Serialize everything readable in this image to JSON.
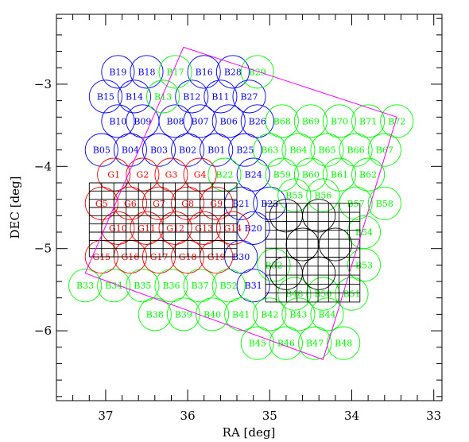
{
  "chart_data": {
    "type": "scatter",
    "xlabel": "RA [deg]",
    "ylabel": "DEC [deg]",
    "xlim": [
      37.6,
      32.9
    ],
    "ylim": [
      -6.85,
      -2.15
    ],
    "x_ticks": [
      "37",
      "36",
      "35",
      "34",
      "33"
    ],
    "x_tick_values": [
      37,
      36,
      35,
      34,
      33
    ],
    "y_ticks": [
      "−3",
      "−4",
      "−5",
      "−6"
    ],
    "y_tick_values": [
      -3,
      -4,
      -5,
      -6
    ],
    "x_minor_step": 0.2,
    "y_minor_step": 0.2,
    "grid": false,
    "field_radius_deg": 0.2,
    "colors": {
      "blue": "#0000ff",
      "green": "#00ff00",
      "red": "#ff0000",
      "magenta": "#ff00ff",
      "black": "#000000"
    },
    "series": [
      {
        "color": "blue",
        "points": [
          {
            "label": "B19",
            "ra": 36.85,
            "dec": -2.85
          },
          {
            "label": "B18",
            "ra": 36.5,
            "dec": -2.85
          },
          {
            "label": "B16",
            "ra": 35.8,
            "dec": -2.85
          },
          {
            "label": "B28",
            "ra": 35.45,
            "dec": -2.85
          },
          {
            "label": "B15",
            "ra": 37.0,
            "dec": -3.15
          },
          {
            "label": "B14",
            "ra": 36.65,
            "dec": -3.15
          },
          {
            "label": "B12",
            "ra": 35.95,
            "dec": -3.15
          },
          {
            "label": "B11",
            "ra": 35.6,
            "dec": -3.15
          },
          {
            "label": "B27",
            "ra": 35.25,
            "dec": -3.15
          },
          {
            "label": "B10",
            "ra": 36.85,
            "dec": -3.45
          },
          {
            "label": "B09",
            "ra": 36.55,
            "dec": -3.45
          },
          {
            "label": "B08",
            "ra": 36.15,
            "dec": -3.45
          },
          {
            "label": "B07",
            "ra": 35.85,
            "dec": -3.45
          },
          {
            "label": "B06",
            "ra": 35.5,
            "dec": -3.45
          },
          {
            "label": "B26",
            "ra": 35.15,
            "dec": -3.45
          },
          {
            "label": "B05",
            "ra": 37.05,
            "dec": -3.8
          },
          {
            "label": "B04",
            "ra": 36.7,
            "dec": -3.8
          },
          {
            "label": "B03",
            "ra": 36.35,
            "dec": -3.8
          },
          {
            "label": "B02",
            "ra": 36.0,
            "dec": -3.8
          },
          {
            "label": "B01",
            "ra": 35.65,
            "dec": -3.8
          },
          {
            "label": "B25",
            "ra": 35.3,
            "dec": -3.8
          },
          {
            "label": "B24",
            "ra": 35.2,
            "dec": -4.1
          },
          {
            "label": "B23",
            "ra": 35.0,
            "dec": -4.45
          },
          {
            "label": "B21",
            "ra": 35.35,
            "dec": -4.45
          },
          {
            "label": "B20",
            "ra": 35.2,
            "dec": -4.75
          },
          {
            "label": "B30",
            "ra": 35.35,
            "dec": -5.1
          },
          {
            "label": "B31",
            "ra": 35.2,
            "dec": -5.45
          }
        ]
      },
      {
        "color": "green",
        "points": [
          {
            "label": "B17",
            "ra": 36.15,
            "dec": -2.85
          },
          {
            "label": "B29",
            "ra": 35.15,
            "dec": -2.85
          },
          {
            "label": "B13",
            "ra": 36.3,
            "dec": -3.15
          },
          {
            "label": "B68",
            "ra": 34.85,
            "dec": -3.45
          },
          {
            "label": "B69",
            "ra": 34.5,
            "dec": -3.45
          },
          {
            "label": "B70",
            "ra": 34.15,
            "dec": -3.45
          },
          {
            "label": "B71",
            "ra": 33.8,
            "dec": -3.45
          },
          {
            "label": "B72",
            "ra": 33.45,
            "dec": -3.45
          },
          {
            "label": "B63",
            "ra": 35.0,
            "dec": -3.8
          },
          {
            "label": "B64",
            "ra": 34.65,
            "dec": -3.8
          },
          {
            "label": "B65",
            "ra": 34.3,
            "dec": -3.8
          },
          {
            "label": "B66",
            "ra": 33.95,
            "dec": -3.8
          },
          {
            "label": "B67",
            "ra": 33.6,
            "dec": -3.8
          },
          {
            "label": "B22",
            "ra": 35.55,
            "dec": -4.1
          },
          {
            "label": "B59",
            "ra": 34.85,
            "dec": -4.1
          },
          {
            "label": "B60",
            "ra": 34.5,
            "dec": -4.1
          },
          {
            "label": "B61",
            "ra": 34.15,
            "dec": -4.1
          },
          {
            "label": "B62",
            "ra": 33.8,
            "dec": -4.1
          },
          {
            "label": "B55",
            "ra": 34.7,
            "dec": -4.35
          },
          {
            "label": "B56",
            "ra": 34.35,
            "dec": -4.35
          },
          {
            "label": "B57",
            "ra": 33.95,
            "dec": -4.45
          },
          {
            "label": "B58",
            "ra": 33.6,
            "dec": -4.45
          },
          {
            "label": "B54",
            "ra": 33.85,
            "dec": -4.8
          },
          {
            "label": "B32",
            "ra": 34.95,
            "dec": -5.2
          },
          {
            "label": "B53",
            "ra": 33.85,
            "dec": -5.2
          },
          {
            "label": "B48",
            "ra": 34.7,
            "dec": -5.55
          },
          {
            "label": "B50",
            "ra": 34.35,
            "dec": -5.55
          },
          {
            "label": "B51",
            "ra": 34.0,
            "dec": -5.55
          },
          {
            "label": "B52",
            "ra": 35.5,
            "dec": -5.45
          },
          {
            "label": "B33",
            "ra": 37.25,
            "dec": -5.45
          },
          {
            "label": "B34",
            "ra": 36.9,
            "dec": -5.45
          },
          {
            "label": "B35",
            "ra": 36.55,
            "dec": -5.45
          },
          {
            "label": "B36",
            "ra": 36.2,
            "dec": -5.45
          },
          {
            "label": "B37",
            "ra": 35.85,
            "dec": -5.45
          },
          {
            "label": "B38",
            "ra": 36.4,
            "dec": -5.8
          },
          {
            "label": "B39",
            "ra": 36.05,
            "dec": -5.8
          },
          {
            "label": "B40",
            "ra": 35.7,
            "dec": -5.8
          },
          {
            "label": "B41",
            "ra": 35.35,
            "dec": -5.8
          },
          {
            "label": "B42",
            "ra": 35.0,
            "dec": -5.8
          },
          {
            "label": "B43",
            "ra": 34.65,
            "dec": -5.8
          },
          {
            "label": "B44",
            "ra": 34.3,
            "dec": -5.8
          },
          {
            "label": "B45",
            "ra": 35.15,
            "dec": -6.15
          },
          {
            "label": "B46",
            "ra": 34.8,
            "dec": -6.15
          },
          {
            "label": "B47",
            "ra": 34.45,
            "dec": -6.15
          },
          {
            "label": "B48",
            "ra": 34.1,
            "dec": -6.15
          }
        ]
      },
      {
        "color": "red",
        "points": [
          {
            "label": "G1",
            "ra": 36.9,
            "dec": -4.1
          },
          {
            "label": "G2",
            "ra": 36.55,
            "dec": -4.1
          },
          {
            "label": "G3",
            "ra": 36.2,
            "dec": -4.1
          },
          {
            "label": "G4",
            "ra": 35.85,
            "dec": -4.1
          },
          {
            "label": "G5",
            "ra": 37.05,
            "dec": -4.45
          },
          {
            "label": "G6",
            "ra": 36.7,
            "dec": -4.45
          },
          {
            "label": "G7",
            "ra": 36.35,
            "dec": -4.45
          },
          {
            "label": "G8",
            "ra": 36.0,
            "dec": -4.45
          },
          {
            "label": "G9",
            "ra": 35.65,
            "dec": -4.45
          },
          {
            "label": "G10",
            "ra": 36.85,
            "dec": -4.75
          },
          {
            "label": "G11",
            "ra": 36.5,
            "dec": -4.75
          },
          {
            "label": "G12",
            "ra": 36.15,
            "dec": -4.75
          },
          {
            "label": "G13",
            "ra": 35.8,
            "dec": -4.75
          },
          {
            "label": "G14",
            "ra": 35.45,
            "dec": -4.75
          },
          {
            "label": "G15",
            "ra": 37.05,
            "dec": -5.1
          },
          {
            "label": "G16",
            "ra": 36.7,
            "dec": -5.1
          },
          {
            "label": "G17",
            "ra": 36.35,
            "dec": -5.1
          },
          {
            "label": "G18",
            "ra": 36.0,
            "dec": -5.1
          },
          {
            "label": "G19",
            "ra": 35.65,
            "dec": -5.1
          }
        ]
      },
      {
        "color": "black",
        "points": [
          {
            "label": "",
            "ra": 34.8,
            "dec": -4.6
          },
          {
            "label": "",
            "ra": 34.4,
            "dec": -4.6
          },
          {
            "label": "",
            "ra": 34.6,
            "dec": -4.95
          },
          {
            "label": "",
            "ra": 34.2,
            "dec": -4.95
          },
          {
            "label": "",
            "ra": 34.8,
            "dec": -5.3
          },
          {
            "label": "",
            "ra": 34.4,
            "dec": -5.3
          }
        ]
      }
    ],
    "outline_polygon": {
      "color": "magenta",
      "vertices_radec": [
        [
          36.05,
          -2.55
        ],
        [
          33.45,
          -3.4
        ],
        [
          34.35,
          -6.35
        ],
        [
          37.25,
          -5.3
        ]
      ]
    },
    "grid_regions": [
      {
        "color": "black",
        "ra_range": [
          37.2,
          35.4
        ],
        "dec_range": [
          -4.2,
          -5.1
        ],
        "cols": 12,
        "rows": 9
      },
      {
        "color": "black",
        "ra_range": [
          35.05,
          33.9
        ],
        "dec_range": [
          -4.45,
          -5.65
        ],
        "cols": 9,
        "rows": 11
      }
    ]
  }
}
